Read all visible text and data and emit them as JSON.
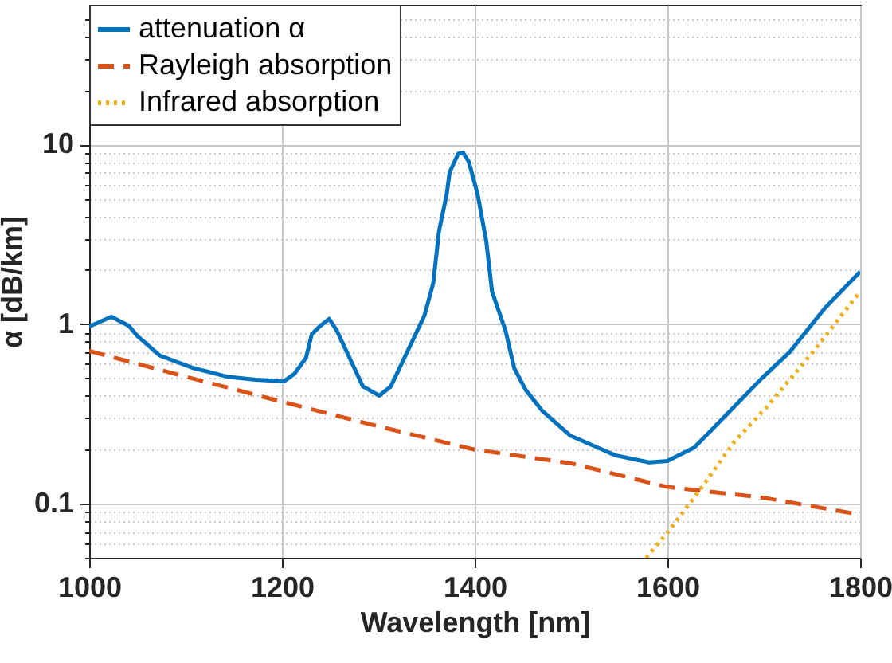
{
  "chart_data": {
    "type": "line",
    "xlabel": "Wavelength [nm]",
    "ylabel": "α [dB/km]",
    "xlim": [
      1000,
      1800
    ],
    "xticks": [
      1000,
      1200,
      1400,
      1600,
      1800
    ],
    "ylim": [
      0.05,
      60
    ],
    "log": "y",
    "yticks": [
      {
        "value": 0.05,
        "label": null
      },
      {
        "value": 0.06,
        "label": null
      },
      {
        "value": 0.07,
        "label": null
      },
      {
        "value": 0.08,
        "label": null
      },
      {
        "value": 0.09,
        "label": null
      },
      0.1,
      {
        "value": 0.2,
        "label": null
      },
      {
        "value": 0.3,
        "label": null
      },
      {
        "value": 0.4,
        "label": null
      },
      {
        "value": 0.5,
        "label": null
      },
      {
        "value": 0.6,
        "label": null
      },
      {
        "value": 0.7,
        "label": null
      },
      {
        "value": 0.8,
        "label": null
      },
      {
        "value": 0.9,
        "label": null
      },
      1,
      {
        "value": 2,
        "label": null
      },
      {
        "value": 3,
        "label": null
      },
      {
        "value": 4,
        "label": null
      },
      {
        "value": 5,
        "label": null
      },
      {
        "value": 6,
        "label": null
      },
      {
        "value": 7,
        "label": null
      },
      {
        "value": 8,
        "label": null
      },
      {
        "value": 9,
        "label": null
      },
      10,
      {
        "value": 20,
        "label": null
      },
      {
        "value": 30,
        "label": null
      },
      {
        "value": 40,
        "label": null
      },
      {
        "value": 50,
        "label": null
      }
    ],
    "grid": true,
    "legend": "top left",
    "series": [
      {
        "name": "attenuation   α",
        "color": "#0072bd",
        "line_style": "solid",
        "x": [
          1000,
          1023,
          1041,
          1050,
          1073,
          1108,
          1143,
          1173,
          1202,
          1213,
          1225,
          1231,
          1240,
          1249,
          1257,
          1269,
          1284,
          1301,
          1313,
          1330,
          1348,
          1357,
          1363,
          1371,
          1374,
          1383,
          1388,
          1394,
          1403,
          1412,
          1418,
          1432,
          1441,
          1453,
          1470,
          1499,
          1546,
          1581,
          1600,
          1628,
          1663,
          1698,
          1727,
          1763,
          1800
        ],
        "values": [
          0.97,
          1.1,
          0.98,
          0.86,
          0.67,
          0.57,
          0.51,
          0.49,
          0.48,
          0.53,
          0.65,
          0.88,
          0.98,
          1.07,
          0.92,
          0.67,
          0.45,
          0.4,
          0.45,
          0.7,
          1.12,
          1.69,
          3.3,
          5.3,
          7,
          8.9,
          9,
          8,
          5.3,
          2.9,
          1.52,
          0.92,
          0.57,
          0.43,
          0.33,
          0.24,
          0.186,
          0.17,
          0.173,
          0.206,
          0.32,
          0.5,
          0.7,
          1.22,
          1.96
        ]
      },
      {
        "name": "Rayleigh absorption",
        "color": "#d95319",
        "line_style": "dashed",
        "x": [
          1000,
          1100,
          1200,
          1300,
          1400,
          1500,
          1600,
          1700,
          1800
        ],
        "values": [
          0.71,
          0.51,
          0.37,
          0.27,
          0.2,
          0.168,
          0.124,
          0.108,
          0.087
        ]
      },
      {
        "name": "Infrared absorption",
        "color": "#edb120",
        "line_style": "dotted",
        "x": [
          1578,
          1600,
          1634,
          1669,
          1704,
          1751,
          1800
        ],
        "values": [
          0.05,
          0.069,
          0.12,
          0.22,
          0.35,
          0.7,
          1.52
        ]
      }
    ]
  }
}
